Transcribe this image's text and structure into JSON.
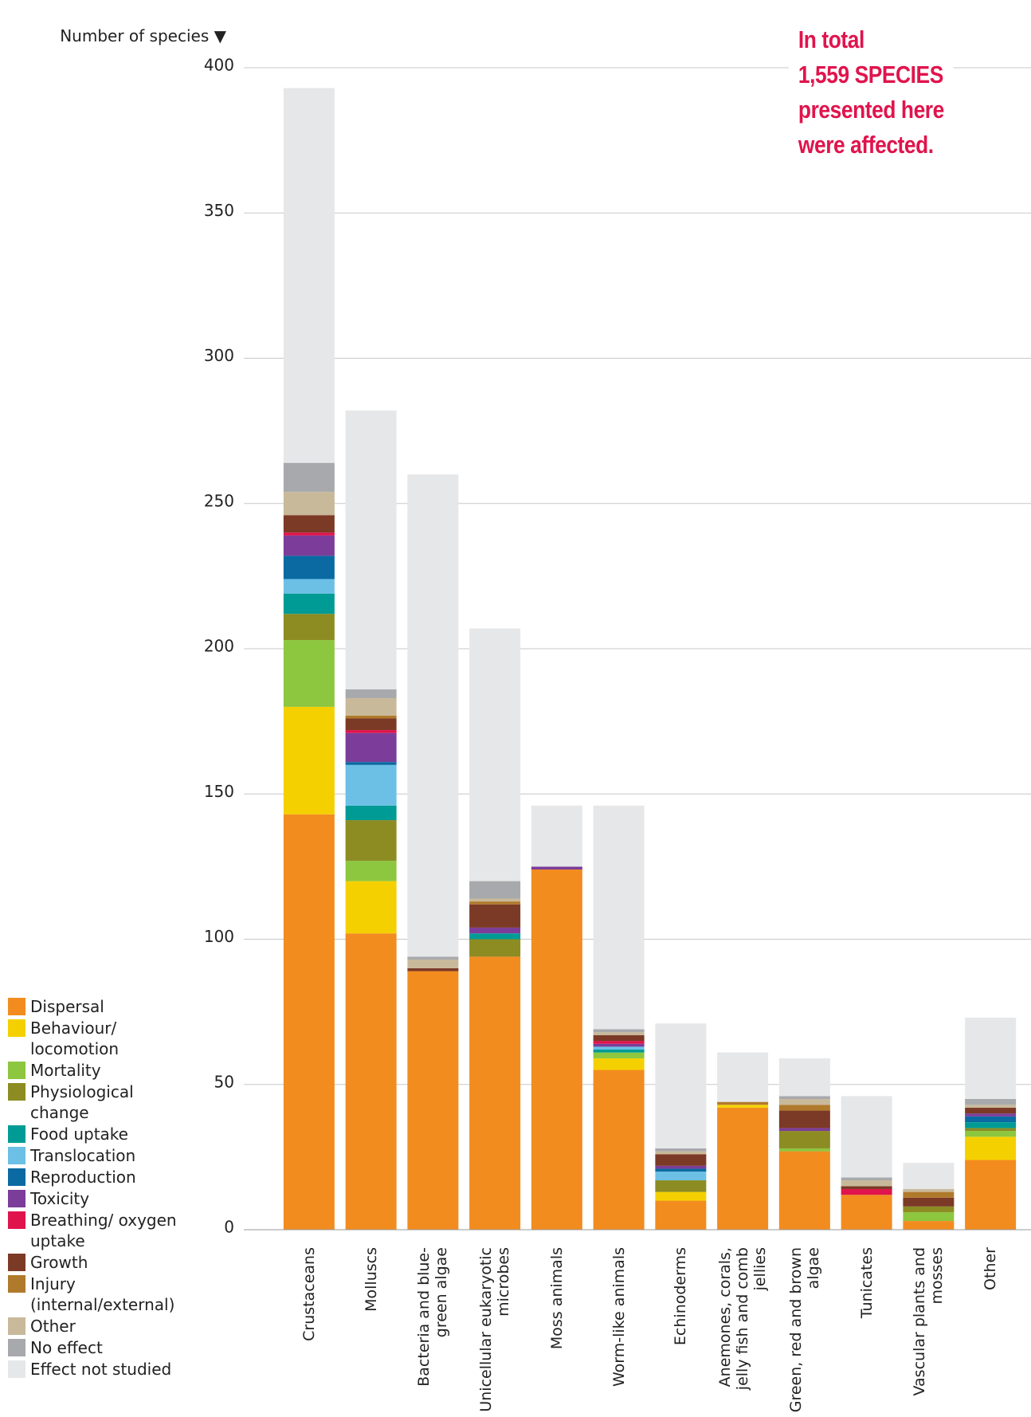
{
  "chart_data": {
    "type": "stacked_bar",
    "y_axis_title": "Number of species ▼",
    "annotation": [
      "In total",
      "1,559 SPECIES",
      "presented here",
      "were affected."
    ],
    "categories": [
      "Crustaceans",
      "Molluscs",
      "Bacteria and blue-green algae",
      "Unicellular eukaryotic microbes",
      "Moss animals",
      "Worm-like animals",
      "Echinoderms",
      "Anemones, corals, jelly fish and comb jellies",
      "Green, red and brown algae",
      "Tunicates",
      "Vascular plants and mosses",
      "Other"
    ],
    "ylim": [
      0,
      400
    ],
    "yticks": [
      0,
      50,
      100,
      150,
      200,
      250,
      300,
      350,
      400
    ],
    "grid": true,
    "series": [
      {
        "name": "Dispersal",
        "color": "#f28c1f",
        "values": [
          143,
          102,
          89,
          94,
          124,
          55,
          10,
          42,
          27,
          12,
          3,
          24
        ]
      },
      {
        "name": "Behaviour/ locomotion",
        "color": "#f5d000",
        "values": [
          37,
          18,
          0,
          0,
          0,
          4,
          3,
          1,
          0,
          0,
          0,
          8
        ]
      },
      {
        "name": "Mortality",
        "color": "#8dc63f",
        "values": [
          23,
          7,
          0,
          0,
          0,
          2,
          0,
          0,
          1,
          0,
          3,
          2
        ]
      },
      {
        "name": "Physiological change",
        "color": "#8c8c23",
        "values": [
          9,
          14,
          0,
          6,
          0,
          0,
          4,
          0,
          6,
          0,
          2,
          1
        ]
      },
      {
        "name": "Food uptake",
        "color": "#009b95",
        "values": [
          7,
          5,
          0,
          2,
          0,
          1,
          0,
          0,
          0,
          0,
          0,
          2
        ]
      },
      {
        "name": "Translocation",
        "color": "#6cc0e5",
        "values": [
          5,
          14,
          0,
          0,
          0,
          1,
          3,
          0,
          0,
          0,
          0,
          0
        ]
      },
      {
        "name": "Reproduction",
        "color": "#0a6aa1",
        "values": [
          8,
          1,
          0,
          0,
          0,
          0,
          1,
          0,
          0,
          0,
          0,
          2
        ]
      },
      {
        "name": "Toxicity",
        "color": "#7b3d99",
        "values": [
          7,
          10,
          0,
          2,
          1,
          1,
          1,
          0,
          1,
          0,
          0,
          1
        ]
      },
      {
        "name": "Breathing/ oxygen uptake",
        "color": "#e0144c",
        "values": [
          1,
          1,
          0,
          0,
          0,
          1,
          0,
          0,
          0,
          2,
          0,
          0
        ]
      },
      {
        "name": "Growth",
        "color": "#7b3a26",
        "values": [
          6,
          4,
          1,
          8,
          0,
          2,
          4,
          0,
          6,
          1,
          3,
          2
        ]
      },
      {
        "name": "Injury (internal/external)",
        "color": "#b07a2c",
        "values": [
          0,
          1,
          0,
          1,
          0,
          0,
          0,
          1,
          2,
          0,
          2,
          0
        ]
      },
      {
        "name": "Other",
        "color": "#c8b99a",
        "values": [
          8,
          6,
          3,
          1,
          0,
          1,
          1,
          0,
          2,
          2,
          1,
          1
        ]
      },
      {
        "name": "No effect",
        "color": "#a7a9ac",
        "values": [
          10,
          3,
          1,
          6,
          0,
          1,
          1,
          0,
          1,
          1,
          0,
          2
        ]
      },
      {
        "name": "Effect not studied",
        "color": "#e6e7e8",
        "values": [
          129,
          96,
          166,
          87,
          21,
          77,
          43,
          17,
          13,
          28,
          9,
          28
        ]
      }
    ]
  }
}
